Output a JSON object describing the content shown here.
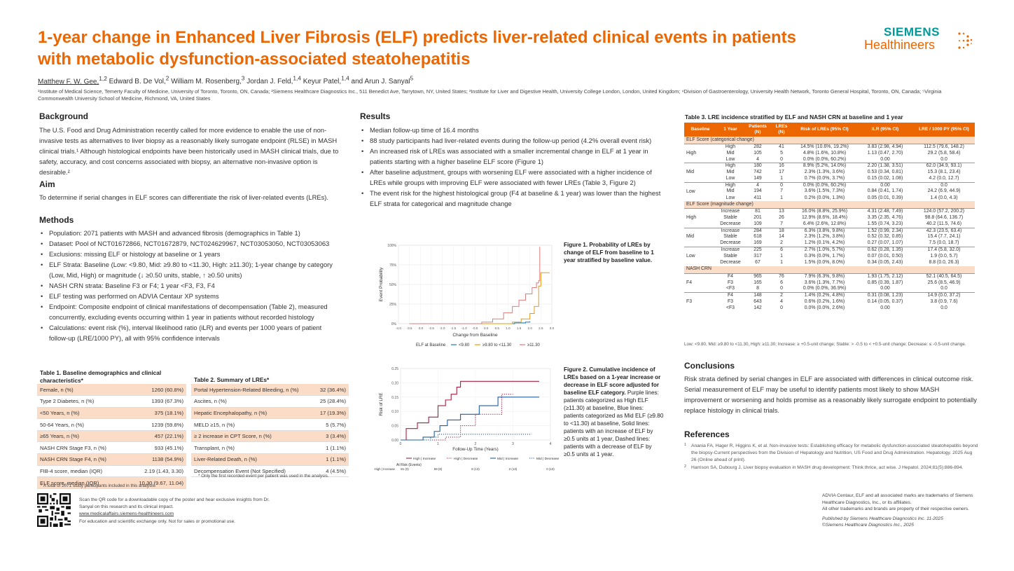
{
  "title": "1-year change in Enhanced Liver Fibrosis (ELF) predicts liver-related clinical events in patients with metabolic dysfunction-associated steatohepatitis",
  "logo": {
    "line1": "SIEMENS",
    "line2": "Healthineers"
  },
  "authors": {
    "first": "Matthew F. W. Gee,",
    "first_sup": "1,2",
    "rest": [
      {
        "name": " Edward B. De Vol,",
        "sup": "2"
      },
      {
        "name": " William M. Rosenberg,",
        "sup": "3"
      },
      {
        "name": " Jordan J. Feld,",
        "sup": "1,4"
      },
      {
        "name": " Keyur Patel,",
        "sup": "1,4"
      },
      {
        "name": " and Arun J. Sanyal",
        "sup": "5"
      }
    ]
  },
  "affiliations": "¹Institute of Medical Science, Temerty Faculty of Medicine, University of Toronto, Toronto, ON, Canada; ²Siemens Healthcare Diagnostics Inc., 511 Benedict Ave, Tarrytown, NY, United States; ³Institute for Liver and Digestive Health, University College London, London, United Kingdom; ⁴Division of Gastroenterology, University Health Network, Toronto General Hospital, Toronto, ON, Canada; ⁵Virginia Commonwealth University School of Medicine, Richmond, VA, United States",
  "background": {
    "heading": "Background",
    "text": "The U.S. Food and Drug Administration recently called for more evidence to enable the use of non-invasive tests as alternatives to liver biopsy as a reasonably likely surrogate endpoint (RLSE) in MASH clinical trials.¹ Although histological endpoints have been historically used in MASH clinical trials, due to safety, accuracy, and cost concerns associated with biopsy, an alternative non-invasive option is desirable.²"
  },
  "aim": {
    "heading": "Aim",
    "text": "To determine if serial changes in ELF scores can differentiate the risk of liver-related events (LREs)."
  },
  "methods": {
    "heading": "Methods",
    "items": [
      "Population: 2071 patients with MASH and advanced fibrosis (demographics in Table 1)",
      "Dataset: Pool of NCT01672866, NCT01672879, NCT024629967, NCT03053050, NCT03053063",
      "Exclusions: missing ELF or histology at baseline or 1 years",
      "ELF Strata: Baseline (Low: <9.80, Mid: ≥9.80 to <11.30, High: ≥11.30); 1-year change by category (Low, Mid, High) or magnitude (↓ ≥0.50 units, stable, ↑ ≥0.50 units)",
      "NASH CRN strata: Baseline F3 or F4; 1 year <F3, F3, F4",
      "ELF testing was performed on ADVIA Centaur XP systems",
      "Endpoint: Composite endpoint of clinical manifestations of decompensation (Table 2), measured concurrently, excluding events occurring within 1 year in patients without recorded histology",
      "Calculations: event risk (%), interval likelihood ratio (iLR) and events per 1000 years of patient follow-up (LRE/1000 PY), all with 95% confidence intervals"
    ]
  },
  "table1": {
    "caption": "Table 1. Baseline demographics and clinical characteristics*",
    "rows": [
      [
        "Female, n (%)",
        "1260 (60.8%)"
      ],
      [
        "Type 2 Diabetes, n (%)",
        "1393 (67.3%)"
      ],
      [
        "<50 Years, n (%)",
        "375 (18.1%)"
      ],
      [
        "50-64 Years, n (%)",
        "1239 (59.8%)"
      ],
      [
        "≥65 Years, n (%)",
        "457 (22.1%)"
      ],
      [
        "NASH CRN Stage F3, n (%)",
        "933 (45.1%)"
      ],
      [
        "NASH CRN Stage F4, n (%)",
        "1138 (54.9%)"
      ],
      [
        "FIB-4 score, median (IQR)",
        "2.19 (1.43, 3.30)"
      ],
      [
        "ELF score, median (IQR)",
        "10.30 (9.67, 11.04)"
      ]
    ],
    "footnote": "* A total of 2071 study participants included in this analysis."
  },
  "table2": {
    "caption": "Table 2. Summary of LREs*",
    "rows": [
      [
        "Portal Hypertension-Related Bleeding, n (%)",
        "32 (36.4%)"
      ],
      [
        "Ascites, n (%)",
        "25 (28.4%)"
      ],
      [
        "Hepatic Encephalopathy, n (%)",
        "17 (19.3%)"
      ],
      [
        "MELD ≥15, n (%)",
        "5 (5.7%)"
      ],
      [
        "≥ 2 increase in CPT Score, n (%)",
        "3 (3.4%)"
      ],
      [
        "Transplant, n (%)",
        "1 (1.1%)"
      ],
      [
        "Liver-Related Death, n (%)",
        "1 (1.1%)"
      ],
      [
        "Decompensation Event (Not Specified)",
        "4 (4.5%)"
      ]
    ],
    "footnote": "* Only the first recorded event per patient was used in the analysis."
  },
  "qr": {
    "text1": "Scan the QR code for a downloadable copy of the poster and hear exclusive insights from Dr. Sanyal on this research and its clinical impact.",
    "link": "www.medicalaffairs.siemens-healthineers.com",
    "text2": "For education and scientific exchange only. Not for sales or promotional use."
  },
  "results": {
    "heading": "Results",
    "items": [
      "Median follow-up time of 16.4 months",
      "88 study participants had liver-related events during the follow-up period (4.2% overall event risk)",
      "An increased risk of LREs was associated with a smaller incremental change in ELF at 1 year in patients starting with a higher baseline ELF score (Figure 1)",
      "After baseline adjustment, groups with worsening ELF were associated with a higher incidence of LREs while groups with improving ELF were associated with fewer LREs (Table 3, Figure 2)",
      "The event risk for the highest histological group (F4 at baseline & 1 year) was lower than the highest ELF strata for categorical and magnitude change"
    ]
  },
  "figure1": {
    "caption": "Figure 1. Probability of LREs by change of ELF from baseline to 1 year stratified by baseline value.",
    "chart_data": {
      "type": "line",
      "xlabel": "Change from Baseline",
      "ylabel": "Event Probability",
      "xlim": [
        -4.0,
        3.0
      ],
      "ylim": [
        0,
        100
      ],
      "x_ticks": [
        "-4.0",
        "-3.5",
        "-3.0",
        "-2.5",
        "-2.0",
        "-1.5",
        "-1.0",
        "-0.5",
        "0.0",
        "0.5",
        "1.0",
        "1.5",
        "2.0",
        "2.5",
        "3.0"
      ],
      "y_ticks": [
        "0%",
        "25%",
        "50%",
        "75%",
        "100%"
      ],
      "legend_title": "ELF at Baseline",
      "series": [
        {
          "name": "<9.80",
          "color": "#1f77b4",
          "x": [
            -3.5,
            1.2,
            1.3,
            1.8,
            2.0
          ],
          "y": [
            0,
            0,
            1,
            2,
            3
          ]
        },
        {
          "name": "≥9.80 to <11.30",
          "color": "#e39b0c",
          "x": [
            -3.5,
            0.6,
            1.2,
            1.6,
            2.0,
            2.2,
            2.4,
            2.5,
            2.7,
            2.9
          ],
          "y": [
            0,
            0,
            2,
            6,
            13,
            22,
            48,
            65,
            65,
            65
          ]
        },
        {
          "name": "≥11.30",
          "color": "#e07b7b",
          "x": [
            -3.5,
            -0.6,
            -0.2,
            0.3,
            0.8,
            1.2,
            1.5,
            1.8,
            2.1,
            2.3,
            2.4,
            2.45
          ],
          "y": [
            0,
            0,
            2,
            6,
            14,
            22,
            30,
            38,
            46,
            52,
            55,
            98
          ]
        }
      ]
    }
  },
  "figure2": {
    "caption_bold": "Figure 2. Cumulative incidence of LREs based on a 1-year increase or decrease in ELF score adjusted for baseline ELF category.",
    "caption_rest": " Purple lines: patients categorized as High ELF (≥11.30) at baseline, Blue lines: patients categorized as Mid ELF (≥9.80 to <11.30) at baseline, Solid lines: patients with an increase of ELF by ≥0.5 units at 1 year, Dashed lines: patients with a decrease of ELF by ≥0.5 units at 1 year.",
    "chart_data": {
      "type": "line",
      "xlabel": "Follow-Up Time (Years)",
      "ylabel": "Risk of LRE",
      "xlim": [
        0,
        4
      ],
      "ylim": [
        0,
        0.25
      ],
      "x_ticks": [
        "0",
        "1",
        "2",
        "3",
        "4"
      ],
      "y_ticks": [
        "0.00",
        "0.05",
        "0.10",
        "0.15",
        "0.20",
        "0.25"
      ],
      "series": [
        {
          "name": "High | Increase",
          "color": "#a5203f",
          "dash": false,
          "x": [
            0,
            0.15,
            0.45,
            0.75,
            1.0,
            1.2,
            1.35,
            1.5,
            1.6,
            1.8,
            3.7
          ],
          "y": [
            0,
            0.04,
            0.06,
            0.08,
            0.12,
            0.14,
            0.16,
            0.185,
            0.205,
            0.205,
            0.205
          ]
        },
        {
          "name": "High | Decrease",
          "color": "#a5203f",
          "dash": true,
          "x": [
            0,
            1.2,
            1.6,
            2.0,
            2.6,
            2.7,
            3.0
          ],
          "y": [
            0,
            0.01,
            0.05,
            0.09,
            0.09,
            0.16,
            0.16
          ]
        },
        {
          "name": "Mid | Increase",
          "color": "#1f5fa0",
          "dash": false,
          "x": [
            0,
            0.6,
            0.9,
            1.05,
            1.25,
            1.6,
            2.1,
            2.4,
            2.6,
            2.8,
            3.7
          ],
          "y": [
            0,
            0.01,
            0.03,
            0.05,
            0.07,
            0.09,
            0.12,
            0.12,
            0.15,
            0.15,
            0.15
          ]
        },
        {
          "name": "Mid | Decrease",
          "color": "#1f5fa0",
          "dash": true,
          "x": [
            0,
            0.8,
            1.0,
            1.5,
            3.5
          ],
          "y": [
            0,
            0.01,
            0.02,
            0.02,
            0.02
          ]
        }
      ],
      "at_risk_title": "At Risk (Events)",
      "at_risk": [
        {
          "label": "High | Increase",
          "values": [
            "81 (0)",
            "59 (8)",
            "8 (13)",
            "2 (13)",
            "0 (13)"
          ]
        },
        {
          "label": "High | Decrease",
          "values": [
            "109 (0)",
            "93 (3)",
            "21 (6)",
            "6 (7)",
            "0 (7)"
          ]
        },
        {
          "label": "Mid | Increase",
          "values": [
            "284 (0)",
            "244 (3)",
            "37 (17)",
            "11 (18)",
            "0 (18)"
          ]
        },
        {
          "label": "Mid | Decrease",
          "values": [
            "169 (0)",
            "149 (0)",
            "28 (2)",
            "5 (2)",
            "0 (2)"
          ]
        }
      ]
    }
  },
  "table3": {
    "caption": "Table 3. LRE incidence stratified by ELF and NASH CRN at baseline and 1 year",
    "headers": [
      "Baseline",
      "1 Year",
      "Patients (N)",
      "LREs (N)",
      "Risk of LREs (95% CI)",
      "iLR (95% CI)",
      "LRE / 1000 PY (95% CI)"
    ],
    "sections": [
      {
        "title": "ELF Score (categorical change)",
        "groups": [
          {
            "base": "High",
            "rows": [
              [
                "High",
                "282",
                "41",
                "14.5% (10.6%, 19.2%)",
                "3.83 (2.98, 4.94)",
                "112.5 (79.6, 148.2)"
              ],
              [
                "Mid",
                "105",
                "5",
                "4.8% (1.6%, 10.8%)",
                "1.13 (0.47, 2.70)",
                "29.2 (5.8, 58.4)"
              ],
              [
                "Low",
                "4",
                "0",
                "0.0% (0.0%, 60.2%)",
                "0.00",
                "0.0"
              ]
            ]
          },
          {
            "base": "Mid",
            "rows": [
              [
                "High",
                "180",
                "16",
                "8.9% (5.2%, 14.0%)",
                "2.20 (1.38, 3.51)",
                "62.0 (34.9, 93.1)"
              ],
              [
                "Mid",
                "742",
                "17",
                "2.3% (1.3%, 3.6%)",
                "0.53 (0.34, 0.81)",
                "15.3 (8.1, 23.4)"
              ],
              [
                "Low",
                "149",
                "1",
                "0.7% (0.0%, 3.7%)",
                "0.15 (0.02, 1.08)",
                "4.2 (0.0, 12.7)"
              ]
            ]
          },
          {
            "base": "Low",
            "rows": [
              [
                "High",
                "4",
                "0",
                "0.0% (0.0%, 60.2%)",
                "0.00",
                "0.0"
              ],
              [
                "Mid",
                "194",
                "7",
                "3.6% (1.5%, 7.3%)",
                "0.84 (0.41, 1.74)",
                "24.2 (6.9, 44.9)"
              ],
              [
                "Low",
                "411",
                "1",
                "0.2% (0.0%, 1.3%)",
                "0.05 (0.01, 0.39)",
                "1.4 (0.0, 4.3)"
              ]
            ]
          }
        ]
      },
      {
        "title": "ELF Score (magnitude change)",
        "groups": [
          {
            "base": "High",
            "rows": [
              [
                "Increase",
                "81",
                "13",
                "16.0% (8.8%, 25.9%)",
                "4.31 (2.48, 7.49)",
                "124.0 (57.2, 200.2)"
              ],
              [
                "Stable",
                "201",
                "26",
                "12.9% (8.6%, 18.4%)",
                "3.35 (2.35, 4.76)",
                "98.8 (64.6, 136.7)"
              ],
              [
                "Decrease",
                "109",
                "7",
                "6.4% (2.6%, 12.8%)",
                "1.55 (0.74, 3.23)",
                "40.2 (11.5, 74.6)"
              ]
            ]
          },
          {
            "base": "Mid",
            "rows": [
              [
                "Increase",
                "284",
                "18",
                "6.3% (3.8%, 9.8%)",
                "1.52 (0.99, 2.34)",
                "42.3 (23.5, 63.4)"
              ],
              [
                "Stable",
                "618",
                "14",
                "2.3% (1.2%, 3.8%)",
                "0.52 (0.32, 0.85)",
                "15.4 (7.7, 24.1)"
              ],
              [
                "Decrease",
                "169",
                "2",
                "1.2% (0.1%, 4.2%)",
                "0.27 (0.07, 1.07)",
                "7.5 (0.0, 18.7)"
              ]
            ]
          },
          {
            "base": "Low",
            "rows": [
              [
                "Increase",
                "225",
                "6",
                "2.7% (1.0%, 5.7%)",
                "0.62 (0.28, 1.35)",
                "17.4 (5.8, 32.0)"
              ],
              [
                "Stable",
                "317",
                "1",
                "0.3% (0.0%, 1.7%)",
                "0.07 (0.01, 0.50)",
                "1.9 (0.0, 5.7)"
              ],
              [
                "Decrease",
                "67",
                "1",
                "1.5% (0.0%, 8.0%)",
                "0.34 (0.05, 2.43)",
                "8.8 (0.0, 26.3)"
              ]
            ]
          }
        ]
      },
      {
        "title": "NASH CRN",
        "groups": [
          {
            "base": "F4",
            "rows": [
              [
                "F4",
                "965",
                "76",
                "7.9% (6.3%, 9.8%)",
                "1.93 (1.75, 2.12)",
                "52.1 (40.5, 64.5)"
              ],
              [
                "F3",
                "165",
                "6",
                "3.6% (1.3%, 7.7%)",
                "0.85 (0.39, 1.87)",
                "25.6 (8.5, 46.9)"
              ],
              [
                "<F3",
                "8",
                "0",
                "0.0% (0.0%, 36.9%)",
                "0.00",
                "0.0"
              ]
            ]
          },
          {
            "base": "F3",
            "rows": [
              [
                "F4",
                "148",
                "2",
                "1.4% (0.2%, 4.8%)",
                "0.31 (0.08, 1.23)",
                "14.9 (0.0, 37.2)"
              ],
              [
                "F3",
                "643",
                "4",
                "0.6% (0.2%, 1.6%)",
                "0.14 (0.05, 0.37)",
                "3.8 (0.9, 7.6)"
              ],
              [
                "<F3",
                "142",
                "0",
                "0.0% (0.0%, 2.6%)",
                "0.00",
                "0.0"
              ]
            ]
          }
        ]
      }
    ],
    "footnote": "Low: <9.80, Mid: ≥9.80 to <11.30, High: ≥11.30; Increase: ≥ +0.5-unit change; Stable: > -0.5 to < +0.5-unit change; Decrease: ≤ -0.5-unit change."
  },
  "conclusions": {
    "heading": "Conclusions",
    "text": "Risk strata defined by serial changes in ELF are associated with differences in clinical outcome risk. Serial measurement of ELF may be useful to identify patients most likely to show MASH improvement or worsening and holds promise as a reasonably likely surrogate endpoint to potentially replace histology in clinical trials."
  },
  "references": {
    "heading": "References",
    "items": [
      "Anania FA, Hager R, Higgins K, et al. Non-invasive tests: Establishing efficacy for metabolic dysfunction-associated steatohepatitis beyond the biopsy-Current perspectives from the Division of Hepatology and Nutrition, US Food and Drug Administration. Hepatology. 2025 Aug 26 (Online ahead of print).",
      "Harrison SA, Dubourg J. Liver biopsy evaluation in MASH drug development: Think thrice, act wise. J Hepatol. 2024;81(5):886-894."
    ]
  },
  "trademarks": {
    "line1": "ADVIA Centaur, ELF and all associated marks are trademarks of Siemens Healthcare Diagnostics, Inc., or its affiliates.",
    "line2": "All other trademarks and brands are property of their respective owners.",
    "pub1": "Published by Siemens Healthcare Diagnostics Inc. 11-2025",
    "pub2": "©Siemens Healthcare Diagnostics Inc., 2025"
  },
  "colors": {
    "accent": "#ec6602",
    "brand_teal": "#009999",
    "row_shade": "#fbdcc6"
  }
}
